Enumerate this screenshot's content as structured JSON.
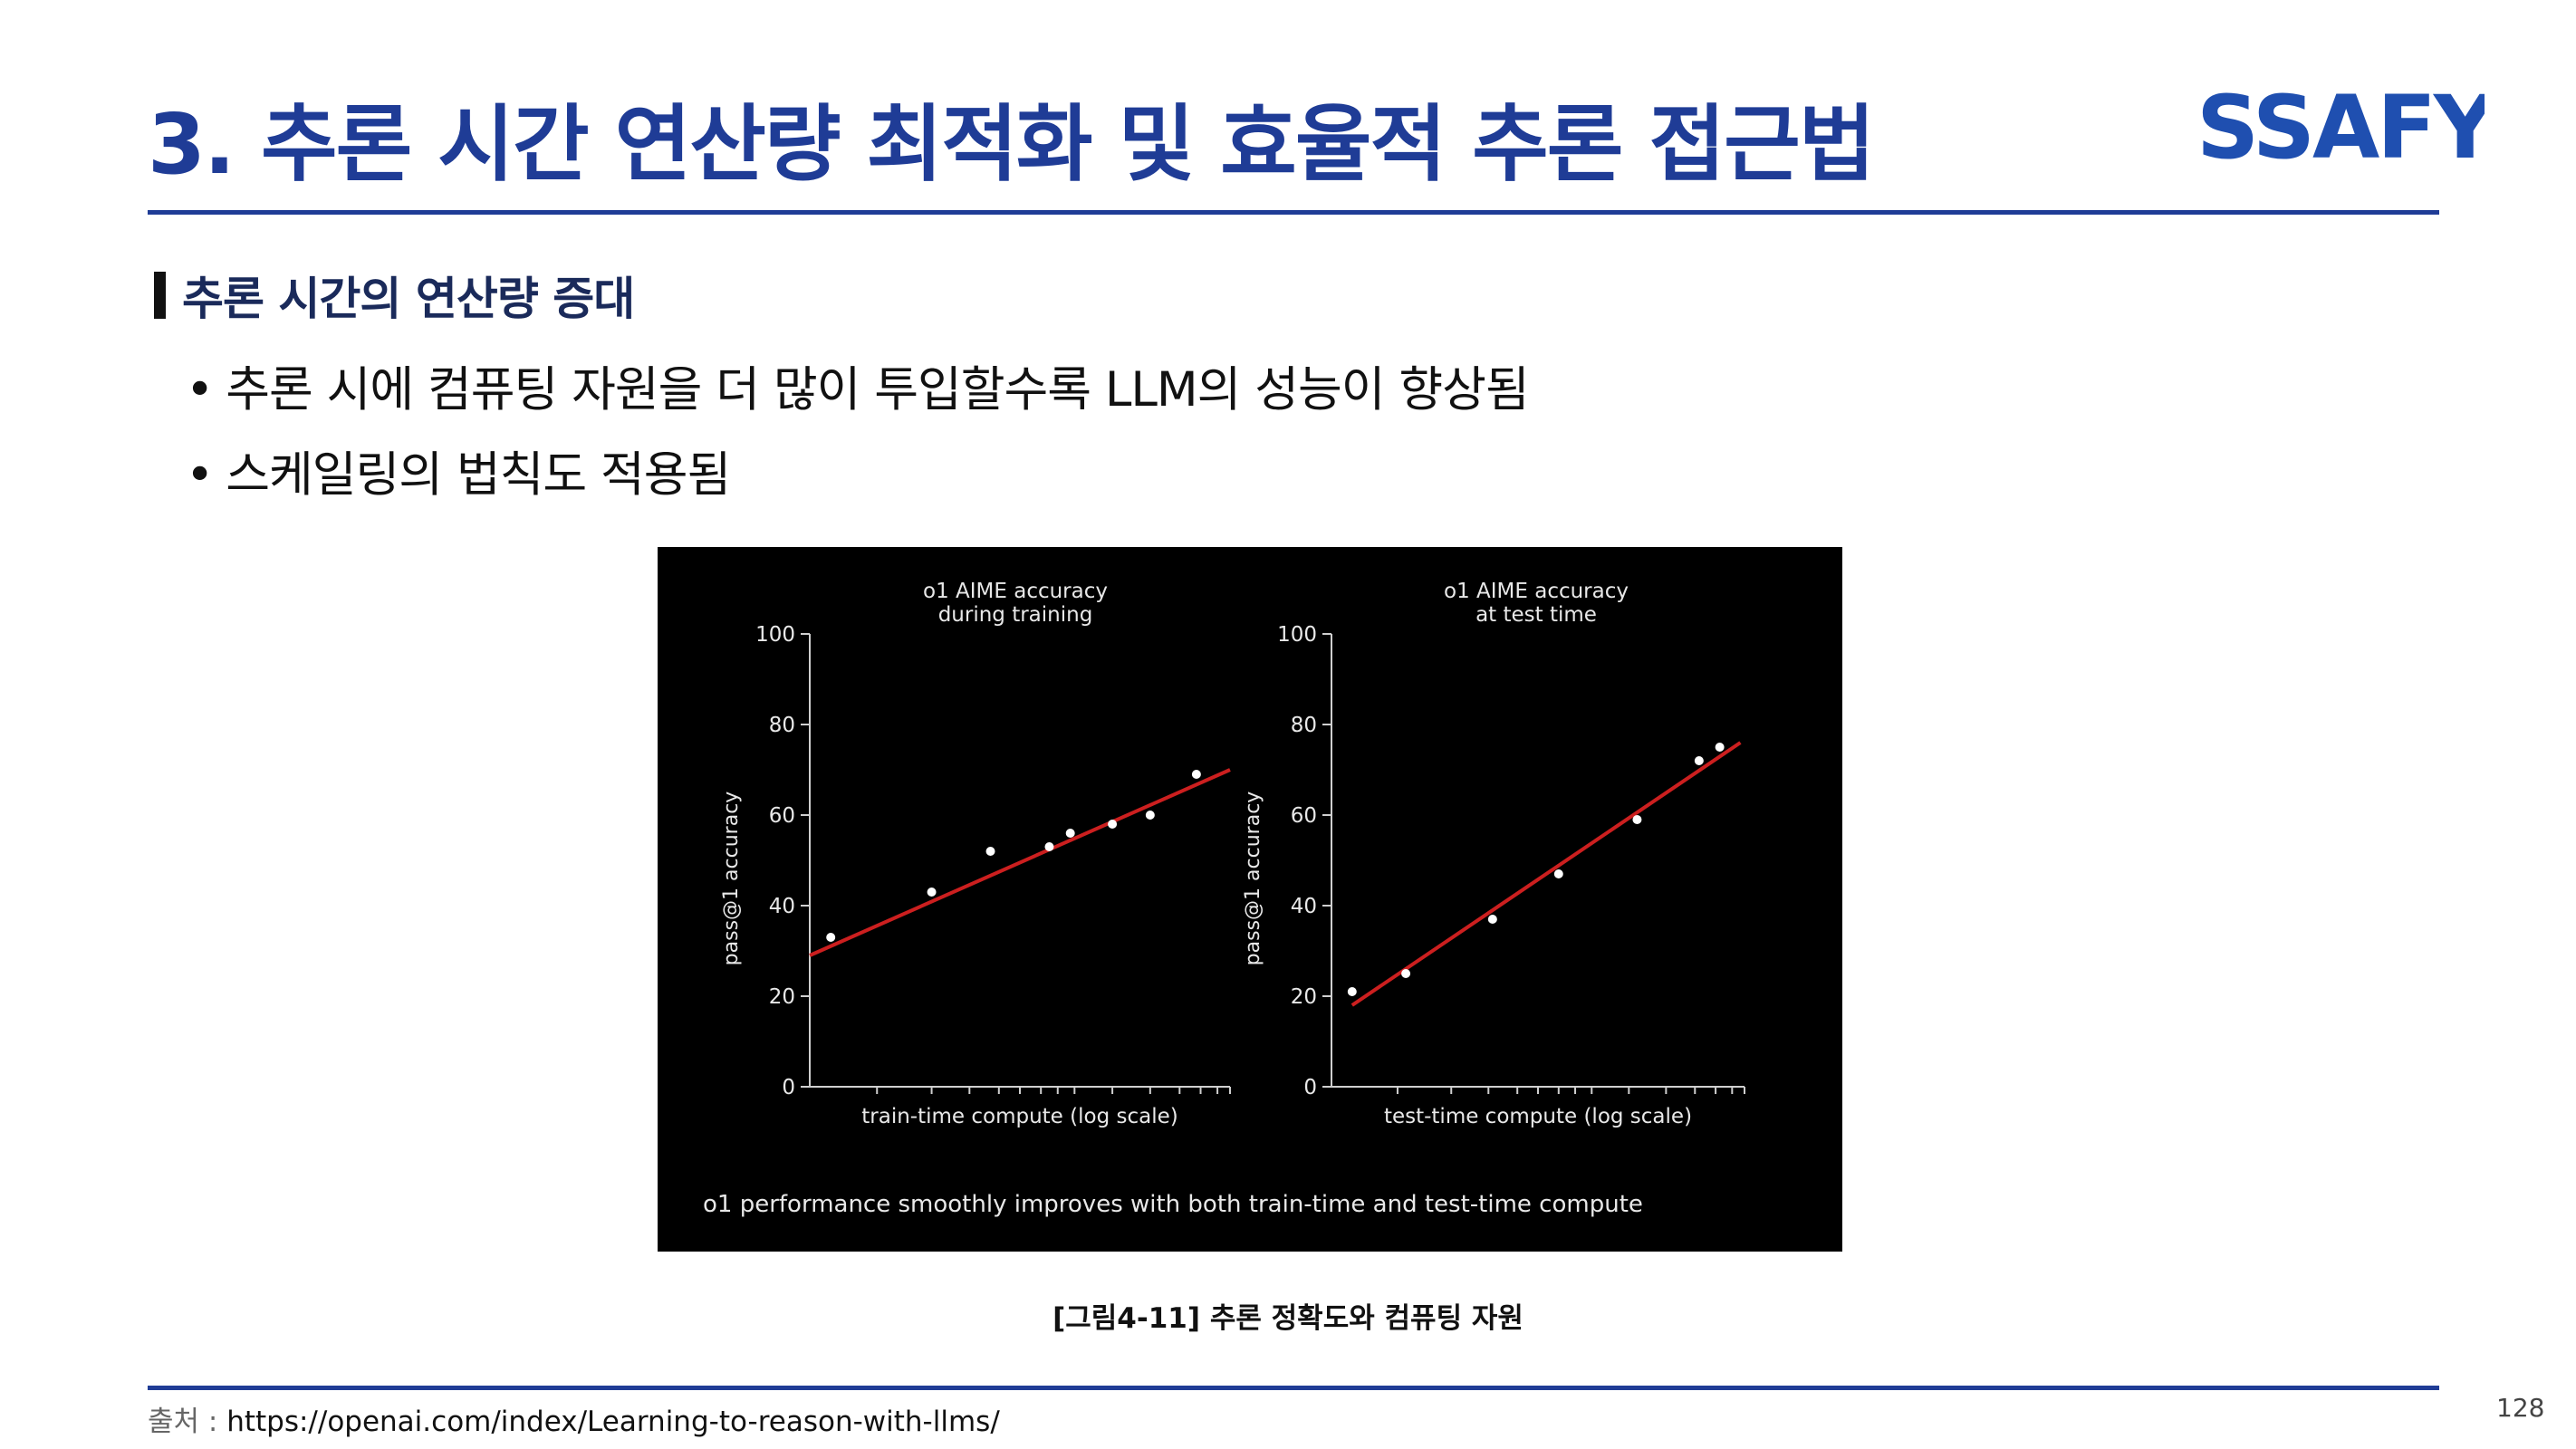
{
  "slide": {
    "title": "3. 추론 시간 연산량 최적화 및 효율적 추론 접근법",
    "logo_text": "SSAFY",
    "section_heading": "추론 시간의 연산량 증대",
    "bullets": [
      "추론 시에 컴퓨팅 자원을 더 많이 투입할수록 LLM의 성능이 향상됨",
      "스케일링의 법칙도 적용됨"
    ],
    "bullet_symbol": "•",
    "figure_caption_overall": "o1 performance smoothly improves with both train-time and test-time compute",
    "caption": "[그림4-11] 추론 정확도와 컴퓨팅 자원",
    "source_label": "출처 :",
    "source_url": "https://openai.com/index/Learning-to-reason-with-llms/",
    "page_number": "128",
    "colors": {
      "accent": "#1f3c96",
      "fit_line": "#cc1f1f",
      "figure_bg": "#000000"
    }
  },
  "chart_data": [
    {
      "type": "scatter",
      "title": "o1 AIME accuracy\nduring training",
      "title_lines": [
        "o1 AIME accuracy",
        "during training"
      ],
      "xlabel": "train-time compute (log scale)",
      "ylabel": "pass@1 accuracy",
      "ylim": [
        0,
        100
      ],
      "yticks": [
        0,
        20,
        40,
        60,
        80,
        100
      ],
      "x_scale": "log",
      "x_range": [
        0.5,
        10.5
      ],
      "points": {
        "x": [
          1,
          3.4,
          4.8,
          6.2,
          6.7,
          7.7,
          8.6,
          9.7
        ],
        "y": [
          33,
          43,
          52,
          53,
          56,
          58,
          60,
          69
        ]
      },
      "fit_line": {
        "x": [
          0.5,
          10.5
        ],
        "y": [
          29,
          70
        ]
      },
      "minor_ticks": [
        2.1,
        3.4,
        4.3,
        5.0,
        5.5,
        6.0,
        6.4,
        6.8,
        7.7,
        8.6,
        9.3,
        9.8,
        10.2,
        10.5
      ],
      "grid": false,
      "legend": "none"
    },
    {
      "type": "scatter",
      "title": "o1 AIME accuracy\nat test time",
      "title_lines": [
        "o1 AIME accuracy",
        "at test time"
      ],
      "xlabel": "test-time compute (log scale)",
      "ylabel": "pass@1 accuracy",
      "ylim": [
        0,
        100
      ],
      "yticks": [
        0,
        20,
        40,
        60,
        80,
        100
      ],
      "x_scale": "log",
      "x_range": [
        0.5,
        10.5
      ],
      "points": {
        "x": [
          1,
          2.3,
          4.4,
          6.0,
          7.9,
          9.4,
          9.9
        ],
        "y": [
          21,
          25,
          37,
          47,
          59,
          72,
          75
        ]
      },
      "fit_line": {
        "x": [
          1,
          10.4
        ],
        "y": [
          18,
          76
        ]
      },
      "minor_ticks": [
        2.1,
        3.4,
        4.3,
        5.0,
        5.5,
        6.0,
        6.4,
        6.8,
        7.7,
        8.6,
        9.3,
        9.8,
        10.2,
        10.5
      ],
      "grid": false,
      "legend": "none"
    }
  ]
}
